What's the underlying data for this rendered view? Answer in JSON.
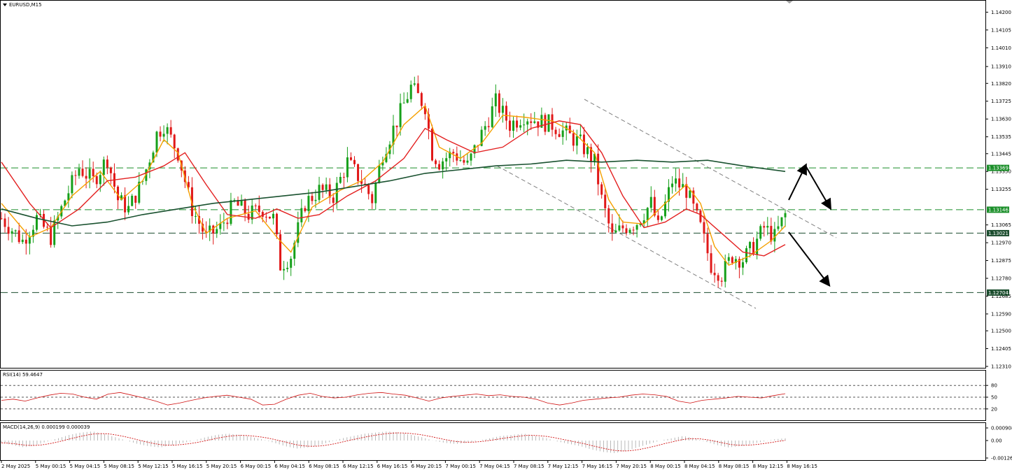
{
  "window": {
    "symbol_title": "EURUSD,M15"
  },
  "chart_data": [
    {
      "type": "candlestick",
      "title": "EURUSD,M15",
      "ylim": [
        1.1231,
        1.1425
      ],
      "y_ticks": [
        "1.14200",
        "1.14105",
        "1.14010",
        "1.13910",
        "1.13820",
        "1.13725",
        "1.13630",
        "1.13535",
        "1.13445",
        "1.13350",
        "1.13255",
        "1.13065",
        "1.12970",
        "1.12875",
        "1.12780",
        "1.12685",
        "1.12590",
        "1.12500",
        "1.12405",
        "1.12310"
      ],
      "x_ticks": [
        "2 May 2025",
        "5 May 00:15",
        "5 May 04:15",
        "5 May 08:15",
        "5 May 12:15",
        "5 May 16:15",
        "5 May 20:15",
        "6 May 00:15",
        "6 May 04:15",
        "6 May 08:15",
        "6 May 12:15",
        "6 May 16:15",
        "6 May 20:15",
        "7 May 00:15",
        "7 May 04:15",
        "7 May 08:15",
        "7 May 12:15",
        "7 May 16:15",
        "7 May 20:15",
        "8 May 00:15",
        "8 May 04:15",
        "8 May 08:15",
        "8 May 12:15",
        "8 May 16:15"
      ],
      "horizontal_levels": [
        {
          "value": 1.13369,
          "label": "1.13369",
          "color": "#1b8f2a"
        },
        {
          "value": 1.13146,
          "label": "1.13146",
          "color": "#1b8f2a"
        },
        {
          "value": 1.13021,
          "label": "1.13021",
          "color": "#1b4d2e"
        },
        {
          "value": 1.12704,
          "label": "1.12704",
          "color": "#1b4d2e"
        }
      ],
      "price_path": [
        [
          0,
          1.131
        ],
        [
          6,
          1.1298
        ],
        [
          10,
          1.131
        ],
        [
          14,
          1.13
        ],
        [
          18,
          1.132
        ],
        [
          22,
          1.1337
        ],
        [
          26,
          1.133
        ],
        [
          30,
          1.1342
        ],
        [
          33,
          1.132
        ],
        [
          36,
          1.1315
        ],
        [
          40,
          1.133
        ],
        [
          44,
          1.1355
        ],
        [
          46,
          1.136
        ],
        [
          50,
          1.1345
        ],
        [
          54,
          1.1315
        ],
        [
          58,
          1.13
        ],
        [
          62,
          1.1305
        ],
        [
          66,
          1.1318
        ],
        [
          70,
          1.1312
        ],
        [
          74,
          1.1315
        ],
        [
          77,
          1.131
        ],
        [
          79,
          1.1285
        ],
        [
          82,
          1.129
        ],
        [
          86,
          1.1318
        ],
        [
          90,
          1.1325
        ],
        [
          94,
          1.1322
        ],
        [
          98,
          1.134
        ],
        [
          102,
          1.133
        ],
        [
          105,
          1.132
        ],
        [
          108,
          1.1345
        ],
        [
          112,
          1.1362
        ],
        [
          116,
          1.138
        ],
        [
          120,
          1.137
        ],
        [
          122,
          1.1345
        ],
        [
          124,
          1.134
        ],
        [
          128,
          1.1345
        ],
        [
          132,
          1.1338
        ],
        [
          136,
          1.1355
        ],
        [
          140,
          1.1372
        ],
        [
          144,
          1.136
        ],
        [
          148,
          1.1365
        ],
        [
          152,
          1.1362
        ],
        [
          156,
          1.136
        ],
        [
          160,
          1.1355
        ],
        [
          164,
          1.135
        ],
        [
          168,
          1.134
        ],
        [
          170,
          1.132
        ],
        [
          173,
          1.13
        ],
        [
          176,
          1.1305
        ],
        [
          180,
          1.1308
        ],
        [
          184,
          1.1318
        ],
        [
          186,
          1.1305
        ],
        [
          190,
          1.133
        ],
        [
          194,
          1.1325
        ],
        [
          196,
          1.1315
        ],
        [
          198,
          1.1305
        ],
        [
          201,
          1.1285
        ],
        [
          204,
          1.128
        ],
        [
          207,
          1.129
        ],
        [
          210,
          1.1288
        ],
        [
          213,
          1.1295
        ],
        [
          216,
          1.1305
        ],
        [
          219,
          1.13
        ],
        [
          222,
          1.1312
        ]
      ],
      "moving_averages": [
        {
          "name": "",
          "color": "#f5a000",
          "path": [
            [
              0,
              1.1318
            ],
            [
              8,
              1.13
            ],
            [
              14,
              1.1305
            ],
            [
              20,
              1.1322
            ],
            [
              28,
              1.1335
            ],
            [
              34,
              1.132
            ],
            [
              40,
              1.133
            ],
            [
              46,
              1.1352
            ],
            [
              50,
              1.1345
            ],
            [
              54,
              1.1318
            ],
            [
              58,
              1.1302
            ],
            [
              64,
              1.131
            ],
            [
              72,
              1.1314
            ],
            [
              78,
              1.13
            ],
            [
              82,
              1.1292
            ],
            [
              88,
              1.1316
            ],
            [
              96,
              1.1325
            ],
            [
              102,
              1.133
            ],
            [
              108,
              1.134
            ],
            [
              114,
              1.136
            ],
            [
              120,
              1.137
            ],
            [
              124,
              1.1348
            ],
            [
              130,
              1.1342
            ],
            [
              136,
              1.135
            ],
            [
              142,
              1.1365
            ],
            [
              148,
              1.1364
            ],
            [
              156,
              1.1362
            ],
            [
              162,
              1.1356
            ],
            [
              168,
              1.1345
            ],
            [
              172,
              1.132
            ],
            [
              176,
              1.1308
            ],
            [
              182,
              1.1307
            ],
            [
              188,
              1.1318
            ],
            [
              194,
              1.1328
            ],
            [
              198,
              1.1318
            ],
            [
              202,
              1.1295
            ],
            [
              206,
              1.1285
            ],
            [
              212,
              1.129
            ],
            [
              218,
              1.1298
            ],
            [
              222,
              1.1306
            ]
          ]
        },
        {
          "name": "",
          "color": "#e32020",
          "path": [
            [
              0,
              1.134
            ],
            [
              8,
              1.1318
            ],
            [
              14,
              1.1305
            ],
            [
              22,
              1.1315
            ],
            [
              30,
              1.133
            ],
            [
              38,
              1.1332
            ],
            [
              46,
              1.1338
            ],
            [
              52,
              1.1345
            ],
            [
              58,
              1.1328
            ],
            [
              64,
              1.1312
            ],
            [
              72,
              1.131
            ],
            [
              78,
              1.1315
            ],
            [
              84,
              1.131
            ],
            [
              90,
              1.1312
            ],
            [
              98,
              1.1322
            ],
            [
              106,
              1.133
            ],
            [
              114,
              1.1342
            ],
            [
              120,
              1.1358
            ],
            [
              126,
              1.1352
            ],
            [
              134,
              1.1345
            ],
            [
              142,
              1.1348
            ],
            [
              150,
              1.1358
            ],
            [
              158,
              1.1362
            ],
            [
              164,
              1.136
            ],
            [
              170,
              1.1345
            ],
            [
              176,
              1.1322
            ],
            [
              182,
              1.1305
            ],
            [
              188,
              1.1308
            ],
            [
              194,
              1.1315
            ],
            [
              198,
              1.1312
            ],
            [
              204,
              1.1302
            ],
            [
              210,
              1.1292
            ],
            [
              216,
              1.129
            ],
            [
              222,
              1.1296
            ]
          ]
        },
        {
          "name": "",
          "color": "#1a5230",
          "path": [
            [
              0,
              1.1315
            ],
            [
              10,
              1.131
            ],
            [
              20,
              1.1306
            ],
            [
              30,
              1.1308
            ],
            [
              40,
              1.1312
            ],
            [
              50,
              1.1315
            ],
            [
              60,
              1.1318
            ],
            [
              70,
              1.132
            ],
            [
              80,
              1.1322
            ],
            [
              90,
              1.1324
            ],
            [
              100,
              1.1327
            ],
            [
              110,
              1.133
            ],
            [
              120,
              1.1334
            ],
            [
              130,
              1.1336
            ],
            [
              140,
              1.1338
            ],
            [
              150,
              1.1339
            ],
            [
              160,
              1.1341
            ],
            [
              170,
              1.134
            ],
            [
              180,
              1.1341
            ],
            [
              190,
              1.134
            ],
            [
              200,
              1.1341
            ],
            [
              210,
              1.1338
            ],
            [
              222,
              1.1335
            ]
          ]
        }
      ],
      "channel_lines": [
        {
          "from": [
            835,
            142
          ],
          "to": [
            1195,
            340
          ]
        },
        {
          "from": [
            710,
            237
          ],
          "to": [
            1080,
            441
          ]
        }
      ],
      "arrows": [
        {
          "from": [
            1127,
            286
          ],
          "to": [
            1151,
            237
          ]
        },
        {
          "from": [
            1151,
            237
          ],
          "to": [
            1186,
            297
          ]
        },
        {
          "from": [
            1127,
            332
          ],
          "to": [
            1184,
            407
          ]
        }
      ]
    },
    {
      "type": "line",
      "title": "RSI(14) 59.4647",
      "ylim": [
        0,
        100
      ],
      "levels": [
        80,
        50,
        20
      ],
      "y_ticks": [
        "80",
        "50",
        "20"
      ],
      "color": "#d01010",
      "values": [
        42,
        45,
        40,
        48,
        55,
        60,
        58,
        50,
        45,
        58,
        62,
        55,
        48,
        40,
        30,
        35,
        42,
        48,
        52,
        55,
        50,
        45,
        30,
        32,
        45,
        55,
        60,
        52,
        48,
        50,
        56,
        60,
        62,
        58,
        55,
        48,
        40,
        48,
        52,
        55,
        58,
        54,
        56,
        52,
        50,
        45,
        35,
        30,
        35,
        42,
        45,
        48,
        50,
        55,
        58,
        56,
        52,
        40,
        35,
        42,
        45,
        48,
        52,
        50,
        48,
        54,
        59
      ]
    },
    {
      "type": "histogram+line",
      "title": "MACD(14,26,9) 0.000199 0.000039",
      "ylim": [
        -0.001261,
        0.000908
      ],
      "y_ticks": [
        "0.000908",
        "0.00",
        "-0.001261"
      ],
      "line_color": "#d01010",
      "histogram_color": "#a8a8a8",
      "histogram": [
        -2,
        -4,
        -6,
        -4,
        -1,
        2,
        5,
        7,
        8,
        6,
        3,
        0,
        -3,
        -5,
        -6,
        -4,
        -2,
        0,
        3,
        5,
        6,
        5,
        3,
        1,
        -2,
        -5,
        -7,
        -6,
        -4,
        -1,
        2,
        4,
        6,
        7,
        8,
        7,
        5,
        3,
        0,
        -2,
        -3,
        -2,
        0,
        2,
        4,
        5,
        6,
        4,
        2,
        -1,
        -3,
        -5,
        -8,
        -10,
        -11,
        -9,
        -6,
        -3,
        0,
        2,
        4,
        2,
        -1,
        -4,
        -6,
        -5,
        -3,
        -1,
        1,
        2
      ]
    }
  ]
}
